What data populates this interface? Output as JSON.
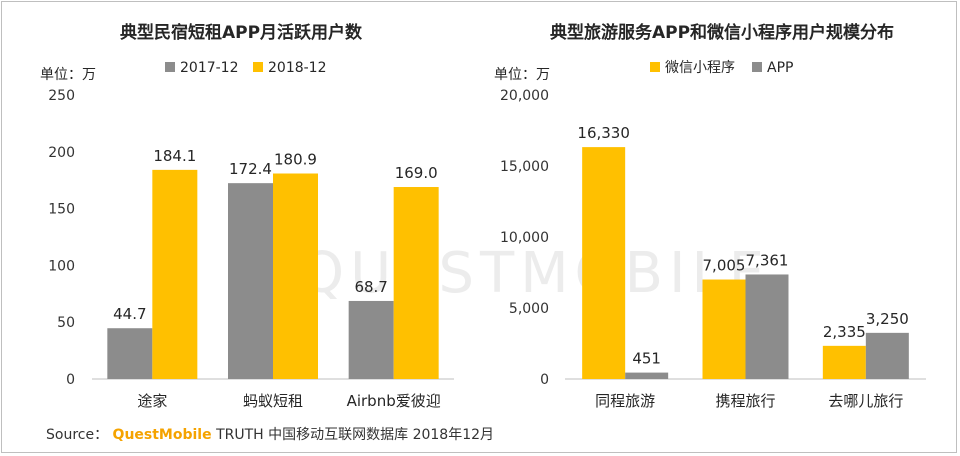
{
  "colors": {
    "gray": "#8c8c8c",
    "yellow": "#ffc000",
    "axis": "#bfbfbf"
  },
  "watermark": "QUESTMOBILE",
  "source": {
    "prefix": "Source：",
    "brand": "QuestMobile",
    "rest": "TRUTH 中国移动互联网数据库 2018年12月"
  },
  "chart_data": [
    {
      "type": "bar",
      "title": "典型民宿短租APP月活跃用户数",
      "unit_label": "单位：万",
      "categories": [
        "途家",
        "蚂蚁短租",
        "Airbnb爱彼迎"
      ],
      "series": [
        {
          "name": "2017-12",
          "color": "#8c8c8c",
          "values": [
            44.7,
            172.4,
            68.7
          ],
          "labels": [
            "44.7",
            "172.4",
            "68.7"
          ]
        },
        {
          "name": "2018-12",
          "color": "#ffc000",
          "values": [
            184.1,
            180.9,
            169.0
          ],
          "labels": [
            "184.1",
            "180.9",
            "169.0"
          ]
        }
      ],
      "ylim": [
        0,
        250
      ],
      "yticks": [
        0,
        50,
        100,
        150,
        200,
        250
      ],
      "ytick_labels": [
        "0",
        "50",
        "100",
        "150",
        "200",
        "250"
      ],
      "legend_position": "top"
    },
    {
      "type": "bar",
      "title": "典型旅游服务APP和微信小程序用户规模分布",
      "unit_label": "单位：万",
      "categories": [
        "同程旅游",
        "携程旅行",
        "去哪儿旅行"
      ],
      "series": [
        {
          "name": "微信小程序",
          "color": "#ffc000",
          "values": [
            16330,
            7005,
            2335
          ],
          "labels": [
            "16,330",
            "7,005",
            "2,335"
          ]
        },
        {
          "name": "APP",
          "color": "#8c8c8c",
          "values": [
            451,
            7361,
            3250
          ],
          "labels": [
            "451",
            "7,361",
            "3,250"
          ]
        }
      ],
      "ylim": [
        0,
        20000
      ],
      "yticks": [
        0,
        5000,
        10000,
        15000,
        20000
      ],
      "ytick_labels": [
        "0",
        "5,000",
        "10,000",
        "15,000",
        "20,000"
      ],
      "legend_position": "top"
    }
  ]
}
